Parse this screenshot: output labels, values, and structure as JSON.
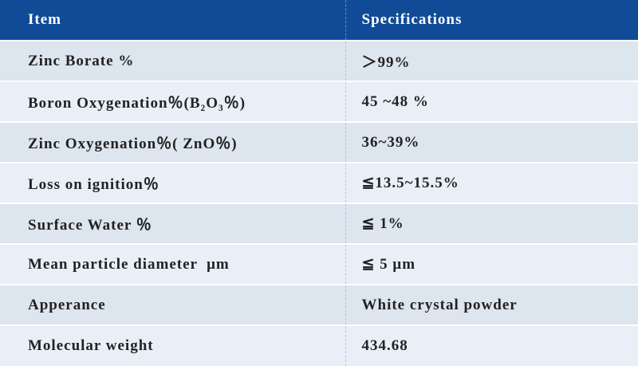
{
  "table": {
    "header": [
      "Item",
      "Specifications"
    ],
    "rows": [
      [
        "Zinc Borate %",
        "＞99%"
      ],
      [
        "Boron Oxygenation％(B₂O₃％)",
        "45 ~48 %"
      ],
      [
        "Zinc Oxygenation％( ZnO％)",
        "36~39%"
      ],
      [
        "Loss on ignition％",
        "≦13.5~15.5%"
      ],
      [
        "Surface Water ％",
        "≦ 1%"
      ],
      [
        "Mean particle diameter  μm",
        "≦ 5 μm"
      ],
      [
        "Apperance",
        "White crystal powder"
      ],
      [
        "Molecular weight",
        "434.68"
      ]
    ]
  }
}
